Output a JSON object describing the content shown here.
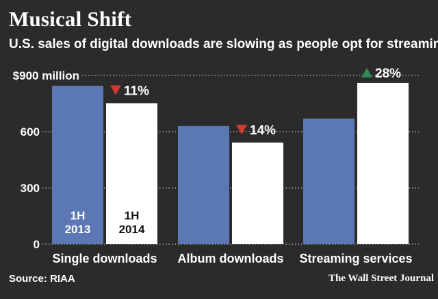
{
  "header": {
    "title": "Musical Shift",
    "subtitle": "U.S. sales of digital downloads are slowing as people opt for streaming"
  },
  "footer": {
    "source": "Source: RIAA",
    "credit": "The Wall Street Journal"
  },
  "colors": {
    "background": "#2b2b2b",
    "series_2013": "#5b78b4",
    "series_2014": "#ffffff",
    "down": "#d23a2e",
    "up": "#2e8b57",
    "text": "#ffffff",
    "grid": "#bfbfbf"
  },
  "chart_data": {
    "type": "bar",
    "title": "Musical Shift",
    "subtitle": "U.S. sales of digital downloads are slowing as people opt for streaming",
    "categories": [
      "Single downloads",
      "Album downloads",
      "Streaming services"
    ],
    "series": [
      {
        "name": "1H 2013",
        "label_lines": [
          "1H",
          "2013"
        ],
        "values": [
          845,
          630,
          670
        ]
      },
      {
        "name": "1H 2014",
        "label_lines": [
          "1H",
          "2014"
        ],
        "values": [
          752,
          542,
          860
        ]
      }
    ],
    "ylim": [
      0,
      900
    ],
    "yticks": [
      {
        "value": 900,
        "label": "$900 million"
      },
      {
        "value": 600,
        "label": "600"
      },
      {
        "value": 300,
        "label": "300"
      },
      {
        "value": 0,
        "label": "0"
      }
    ],
    "changes": [
      {
        "category": "Single downloads",
        "direction": "down",
        "label": "11%"
      },
      {
        "category": "Album downloads",
        "direction": "down",
        "label": "14%"
      },
      {
        "category": "Streaming services",
        "direction": "up",
        "label": "28%"
      }
    ],
    "grid": "dotted",
    "legend": "inside-first-bars"
  }
}
